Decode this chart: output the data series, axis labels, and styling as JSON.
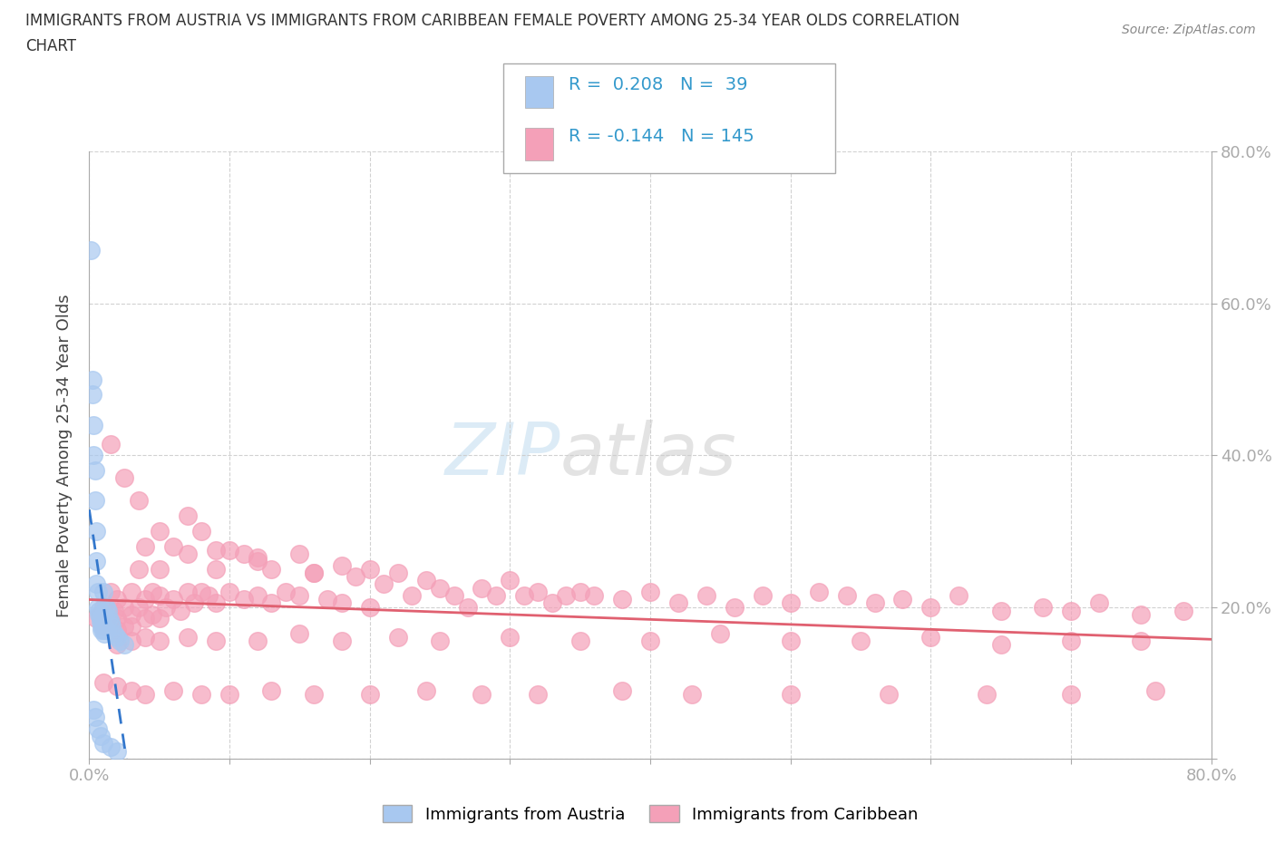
{
  "title_line1": "IMMIGRANTS FROM AUSTRIA VS IMMIGRANTS FROM CARIBBEAN FEMALE POVERTY AMONG 25-34 YEAR OLDS CORRELATION",
  "title_line2": "CHART",
  "source_text": "Source: ZipAtlas.com",
  "ylabel": "Female Poverty Among 25-34 Year Olds",
  "xlim": [
    0.0,
    0.8
  ],
  "ylim": [
    0.0,
    0.8
  ],
  "r_austria": 0.208,
  "n_austria": 39,
  "r_caribbean": -0.144,
  "n_caribbean": 145,
  "austria_color": "#a8c8f0",
  "caribbean_color": "#f4a0b8",
  "austria_line_color": "#3377cc",
  "caribbean_line_color": "#e06070",
  "legend_austria": "Immigrants from Austria",
  "legend_caribbean": "Immigrants from Caribbean",
  "watermark_zip": "ZIP",
  "watermark_atlas": "atlas",
  "austria_scatter_x": [
    0.001,
    0.002,
    0.002,
    0.003,
    0.003,
    0.004,
    0.004,
    0.005,
    0.005,
    0.005,
    0.006,
    0.006,
    0.007,
    0.007,
    0.008,
    0.008,
    0.009,
    0.009,
    0.01,
    0.01,
    0.01,
    0.011,
    0.012,
    0.012,
    0.013,
    0.014,
    0.015,
    0.016,
    0.018,
    0.02,
    0.022,
    0.025,
    0.003,
    0.004,
    0.006,
    0.008,
    0.01,
    0.015,
    0.02
  ],
  "austria_scatter_y": [
    0.67,
    0.5,
    0.48,
    0.44,
    0.4,
    0.38,
    0.34,
    0.3,
    0.26,
    0.23,
    0.22,
    0.2,
    0.195,
    0.19,
    0.185,
    0.18,
    0.175,
    0.17,
    0.22,
    0.19,
    0.17,
    0.165,
    0.2,
    0.17,
    0.195,
    0.185,
    0.18,
    0.175,
    0.165,
    0.16,
    0.155,
    0.15,
    0.065,
    0.055,
    0.04,
    0.03,
    0.02,
    0.015,
    0.01
  ],
  "caribbean_scatter_x": [
    0.005,
    0.008,
    0.01,
    0.01,
    0.012,
    0.015,
    0.015,
    0.018,
    0.02,
    0.02,
    0.02,
    0.025,
    0.025,
    0.03,
    0.03,
    0.03,
    0.035,
    0.035,
    0.04,
    0.04,
    0.04,
    0.045,
    0.045,
    0.05,
    0.05,
    0.05,
    0.055,
    0.06,
    0.06,
    0.065,
    0.07,
    0.07,
    0.075,
    0.08,
    0.08,
    0.085,
    0.09,
    0.09,
    0.1,
    0.1,
    0.11,
    0.11,
    0.12,
    0.12,
    0.13,
    0.13,
    0.14,
    0.15,
    0.15,
    0.16,
    0.17,
    0.18,
    0.18,
    0.19,
    0.2,
    0.2,
    0.21,
    0.22,
    0.23,
    0.24,
    0.25,
    0.26,
    0.27,
    0.28,
    0.29,
    0.3,
    0.31,
    0.32,
    0.33,
    0.34,
    0.35,
    0.36,
    0.38,
    0.4,
    0.42,
    0.44,
    0.46,
    0.48,
    0.5,
    0.52,
    0.54,
    0.56,
    0.58,
    0.6,
    0.62,
    0.65,
    0.68,
    0.7,
    0.72,
    0.75,
    0.78,
    0.02,
    0.03,
    0.04,
    0.05,
    0.07,
    0.09,
    0.12,
    0.15,
    0.18,
    0.22,
    0.25,
    0.3,
    0.35,
    0.4,
    0.45,
    0.5,
    0.55,
    0.6,
    0.65,
    0.7,
    0.75,
    0.01,
    0.02,
    0.03,
    0.04,
    0.06,
    0.08,
    0.1,
    0.13,
    0.16,
    0.2,
    0.24,
    0.28,
    0.32,
    0.38,
    0.43,
    0.5,
    0.57,
    0.64,
    0.7,
    0.76,
    0.015,
    0.025,
    0.035,
    0.05,
    0.07,
    0.09,
    0.12,
    0.16
  ],
  "caribbean_scatter_y": [
    0.185,
    0.19,
    0.2,
    0.175,
    0.185,
    0.22,
    0.18,
    0.195,
    0.21,
    0.185,
    0.17,
    0.2,
    0.175,
    0.22,
    0.19,
    0.175,
    0.25,
    0.2,
    0.28,
    0.21,
    0.185,
    0.22,
    0.19,
    0.25,
    0.215,
    0.185,
    0.2,
    0.28,
    0.21,
    0.195,
    0.27,
    0.22,
    0.205,
    0.3,
    0.22,
    0.215,
    0.25,
    0.205,
    0.275,
    0.22,
    0.27,
    0.21,
    0.26,
    0.215,
    0.25,
    0.205,
    0.22,
    0.27,
    0.215,
    0.245,
    0.21,
    0.255,
    0.205,
    0.24,
    0.25,
    0.2,
    0.23,
    0.245,
    0.215,
    0.235,
    0.225,
    0.215,
    0.2,
    0.225,
    0.215,
    0.235,
    0.215,
    0.22,
    0.205,
    0.215,
    0.22,
    0.215,
    0.21,
    0.22,
    0.205,
    0.215,
    0.2,
    0.215,
    0.205,
    0.22,
    0.215,
    0.205,
    0.21,
    0.2,
    0.215,
    0.195,
    0.2,
    0.195,
    0.205,
    0.19,
    0.195,
    0.15,
    0.155,
    0.16,
    0.155,
    0.16,
    0.155,
    0.155,
    0.165,
    0.155,
    0.16,
    0.155,
    0.16,
    0.155,
    0.155,
    0.165,
    0.155,
    0.155,
    0.16,
    0.15,
    0.155,
    0.155,
    0.1,
    0.095,
    0.09,
    0.085,
    0.09,
    0.085,
    0.085,
    0.09,
    0.085,
    0.085,
    0.09,
    0.085,
    0.085,
    0.09,
    0.085,
    0.085,
    0.085,
    0.085,
    0.085,
    0.09,
    0.415,
    0.37,
    0.34,
    0.3,
    0.32,
    0.275,
    0.265,
    0.245
  ]
}
